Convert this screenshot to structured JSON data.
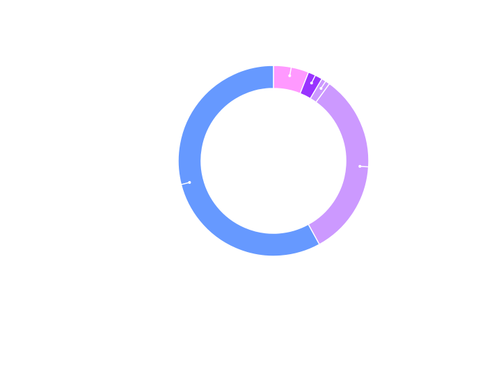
{
  "chart_data": {
    "type": "pie",
    "categories": [
      null,
      null,
      null,
      null,
      null
    ],
    "values": [
      6,
      2.5,
      1.5,
      32,
      58
    ],
    "colors": [
      "#ff99ff",
      "#9933ff",
      "#cc99ff",
      "#cc99ff",
      "#6699ff"
    ]
  }
}
